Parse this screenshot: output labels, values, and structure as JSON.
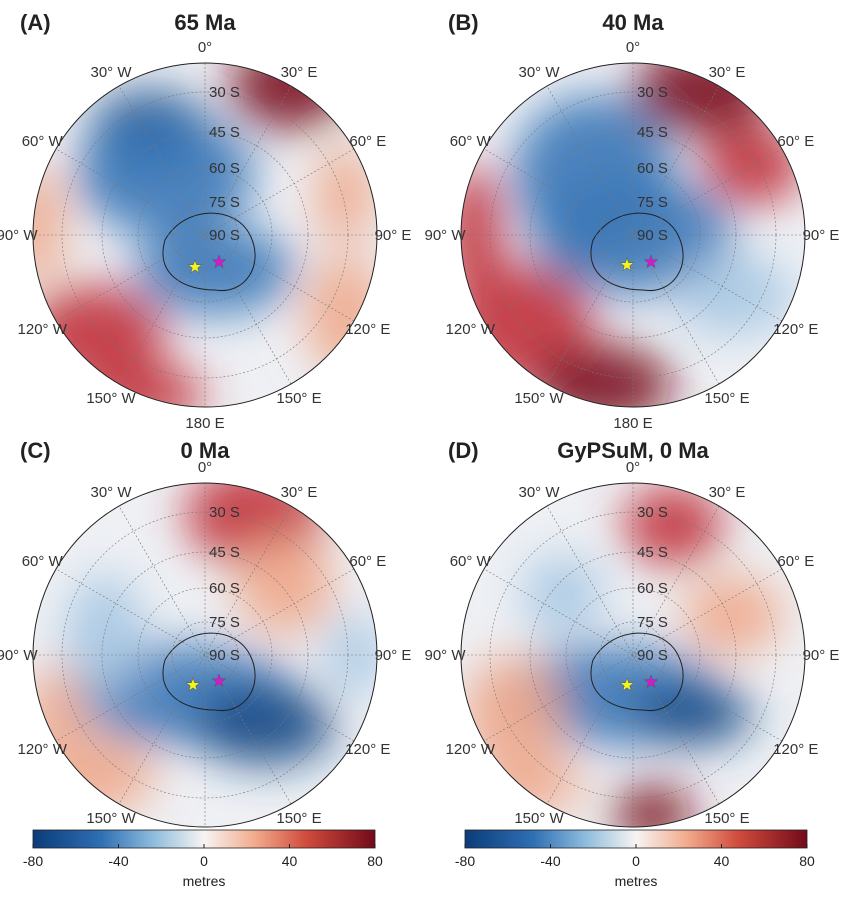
{
  "panels": [
    {
      "label": "(A)",
      "title": "65 Ma"
    },
    {
      "label": "(B)",
      "title": "40 Ma"
    },
    {
      "label": "(C)",
      "title": "0 Ma"
    },
    {
      "label": "(D)",
      "title": "GyPSuM, 0 Ma"
    }
  ],
  "lon_labels": [
    "0°",
    "30° E",
    "60° E",
    "90° E",
    "120° E",
    "150° E",
    "180 E",
    "150° W",
    "120° W",
    "90° W",
    "60° W",
    "30° W"
  ],
  "lat_labels": [
    "30 S",
    "45 S",
    "60 S",
    "75 S",
    "90 S"
  ],
  "colorbars": [
    {
      "lim": [
        -80,
        80
      ],
      "ticks": [
        -80,
        -40,
        0,
        40,
        80
      ],
      "label": "metres"
    },
    {
      "lim": [
        -80,
        80
      ],
      "ticks": [
        -80,
        -40,
        0,
        40,
        80
      ],
      "label": "metres"
    }
  ]
}
